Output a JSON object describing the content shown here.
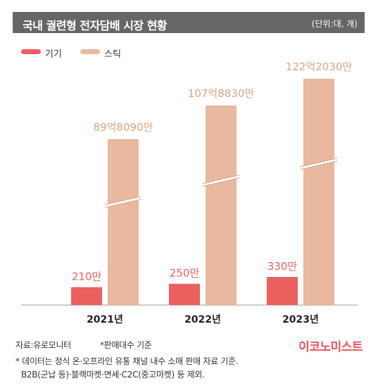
{
  "header": {
    "title": "국내 궐련형 전자담배 시장 현황",
    "unit": "(단위:대, 개)"
  },
  "colors": {
    "device": "#e9605f",
    "stick": "#e8b89f",
    "title_bg": "#666666",
    "logo": "#e8545c"
  },
  "legend": [
    {
      "name": "기기",
      "color": "#e9605f"
    },
    {
      "name": "스틱",
      "color": "#e8b89f"
    }
  ],
  "chart_data": {
    "type": "bar",
    "categories": [
      "2021년",
      "2022년",
      "2023년"
    ],
    "series": [
      {
        "name": "기기",
        "values": [
          2100000,
          2500000,
          3300000
        ],
        "labels": [
          "210만",
          "250만",
          "330만"
        ]
      },
      {
        "name": "스틱",
        "values": [
          8980900000,
          10788300000,
          12220300000
        ],
        "labels": [
          "89억8090만",
          "107억8830만",
          "122억2030만"
        ]
      }
    ],
    "axis_break": true,
    "grid": false,
    "legend_position": "top-left"
  },
  "footer": {
    "source_label": "자료:유로모니터",
    "note_short": "*판매대수 기준",
    "note_line1": "* 데이터는 정식 온·오프라인 유통 채널 내수 소매 판매 자료 기준.",
    "note_line2": "B2B(군납 등)·블랙마켓·면세·C2C(중고마켓) 등 제외.",
    "logo": "이코노미스트"
  }
}
